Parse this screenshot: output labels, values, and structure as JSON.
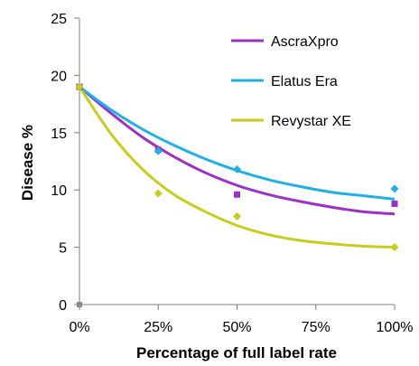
{
  "chart_data": {
    "type": "scatter",
    "xlabel": "Percentage of full label rate",
    "ylabel": "Disease %",
    "xlim": [
      0,
      100
    ],
    "ylim": [
      0,
      25
    ],
    "x_ticks": [
      0,
      25,
      50,
      75,
      100
    ],
    "x_tick_labels": [
      "0%",
      "25%",
      "50%",
      "75%",
      "100%"
    ],
    "y_ticks": [
      0,
      5,
      10,
      15,
      20,
      25
    ],
    "y_tick_labels": [
      "0",
      "5",
      "10",
      "15",
      "20",
      "25"
    ],
    "grid": false,
    "legend_position": "top-right",
    "control": {
      "x": 0,
      "y": 0,
      "color": "#8c8c8c"
    },
    "series": [
      {
        "name": "AscraXpro",
        "color": "#9b2fc8",
        "marker": "square",
        "x": [
          0,
          25,
          50,
          100
        ],
        "y": [
          19,
          13.5,
          9.6,
          8.8
        ],
        "trend": {
          "x": [
            0,
            10,
            20,
            30,
            40,
            50,
            60,
            70,
            80,
            90,
            100
          ],
          "y": [
            19,
            16.7,
            14.6,
            12.9,
            11.5,
            10.4,
            9.6,
            9.0,
            8.5,
            8.1,
            7.9
          ]
        }
      },
      {
        "name": "Elatus Era",
        "color": "#1fb0e8",
        "marker": "diamond",
        "x": [
          0,
          25,
          50,
          100
        ],
        "y": [
          19,
          13.4,
          11.8,
          10.1
        ],
        "trend": {
          "x": [
            0,
            10,
            20,
            30,
            40,
            50,
            60,
            70,
            80,
            90,
            100
          ],
          "y": [
            19,
            17.0,
            15.3,
            13.9,
            12.7,
            11.7,
            10.9,
            10.3,
            9.8,
            9.5,
            9.2
          ]
        }
      },
      {
        "name": "Revystar XE",
        "color": "#c8cc1e",
        "marker": "diamond",
        "x": [
          0,
          25,
          50,
          100
        ],
        "y": [
          19,
          9.7,
          7.7,
          5.0
        ],
        "trend": {
          "x": [
            0,
            10,
            20,
            30,
            40,
            50,
            60,
            70,
            80,
            90,
            100
          ],
          "y": [
            19,
            14.9,
            11.8,
            9.6,
            8.1,
            6.9,
            6.1,
            5.6,
            5.3,
            5.1,
            5.0
          ]
        }
      }
    ]
  }
}
